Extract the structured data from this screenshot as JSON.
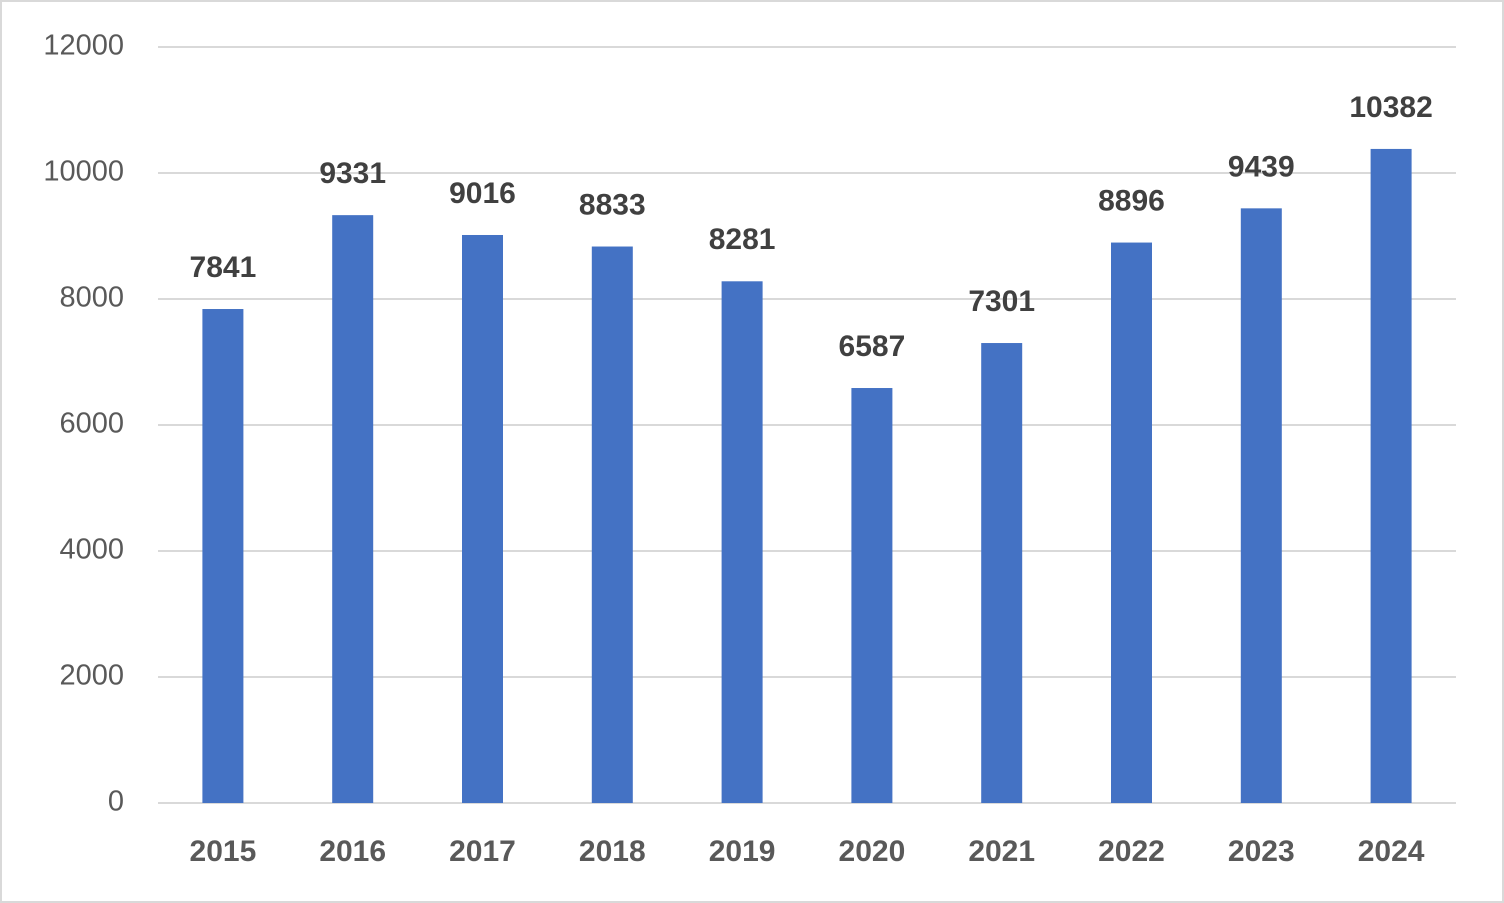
{
  "chart_data": {
    "type": "bar",
    "categories": [
      "2015",
      "2016",
      "2017",
      "2018",
      "2019",
      "2020",
      "2021",
      "2022",
      "2023",
      "2024"
    ],
    "values": [
      7841,
      9331,
      9016,
      8833,
      8281,
      6587,
      7301,
      8896,
      9439,
      10382
    ],
    "color": "#4472c4",
    "ylim": [
      0,
      12000
    ],
    "yticks": [
      0,
      2000,
      4000,
      6000,
      8000,
      10000,
      12000
    ],
    "grid": true,
    "data_labels": true
  }
}
